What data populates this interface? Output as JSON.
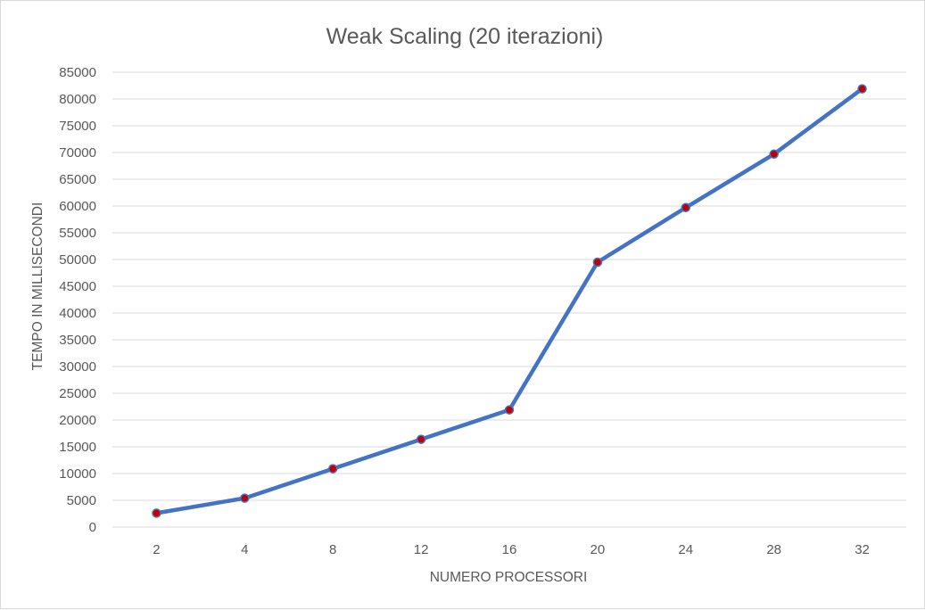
{
  "chart_data": {
    "type": "line",
    "title": "Weak Scaling (20 iterazioni)",
    "xlabel": "NUMERO PROCESSORI",
    "ylabel": "TEMPO IN MILLISECONDI",
    "categories": [
      "2",
      "4",
      "8",
      "12",
      "16",
      "20",
      "24",
      "28",
      "32"
    ],
    "series": [
      {
        "values": [
          2600,
          5400,
          10900,
          16400,
          21900,
          49500,
          59700,
          69700,
          81900
        ],
        "line_color": "#4472c4",
        "marker_fill": "#c00000",
        "marker_stroke": "#4472c4"
      }
    ],
    "ylim": [
      0,
      85000
    ],
    "yticks": [
      "0",
      "5000",
      "10000",
      "15000",
      "20000",
      "25000",
      "30000",
      "35000",
      "40000",
      "45000",
      "50000",
      "55000",
      "60000",
      "65000",
      "70000",
      "75000",
      "80000",
      "85000"
    ],
    "grid": true,
    "legend": "none"
  }
}
